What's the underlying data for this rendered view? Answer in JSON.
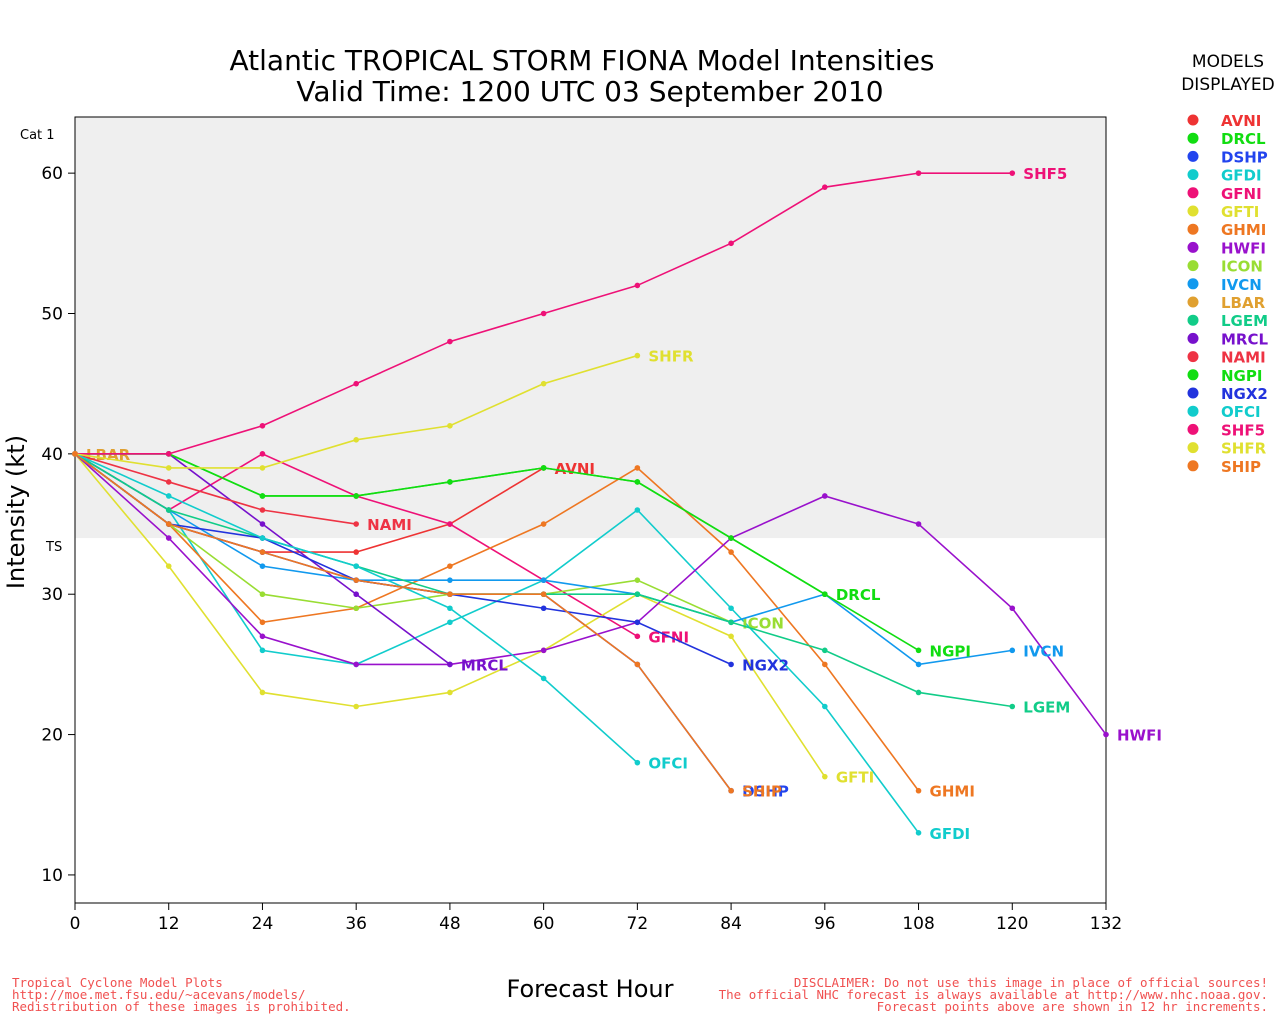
{
  "title_line1": "Atlantic TROPICAL STORM FIONA Model Intensities",
  "title_line2": "Valid Time: 1200 UTC 03 September 2010",
  "legend_title_line1": "MODELS",
  "legend_title_line2": "DISPLAYED",
  "band_labels": {
    "cat1": "Cat 1",
    "ts": "TS"
  },
  "footer_left": [
    "Tropical Cyclone Model Plots",
    "http://moe.met.fsu.edu/~acevans/models/",
    "Redistribution of these images is prohibited."
  ],
  "footer_right": [
    "DISCLAIMER: Do not use this image in place of official sources!",
    "The official NHC forecast is always available at http://www.nhc.noaa.gov.",
    "Forecast points above are shown in 12 hr increments."
  ],
  "chart_data": {
    "type": "line",
    "xlabel": "Forecast Hour",
    "ylabel": "Intensity (kt)",
    "xlim": [
      0,
      132
    ],
    "ylim": [
      8,
      64
    ],
    "xticks": [
      0,
      12,
      24,
      36,
      48,
      60,
      72,
      84,
      96,
      108,
      120,
      132
    ],
    "yticks": [
      10,
      20,
      30,
      40,
      50,
      60
    ],
    "bands": {
      "cat1_min_kt": 64,
      "ts_min_kt": 34
    },
    "grid": false,
    "legend_position": "right",
    "series": [
      {
        "name": "AVNI",
        "color": "#ee3333",
        "x": [
          0,
          12,
          24,
          36,
          48,
          60
        ],
        "y": [
          40,
          35,
          33,
          33,
          35,
          39
        ]
      },
      {
        "name": "DRCL",
        "color": "#11dd11",
        "x": [
          0,
          12,
          24,
          36,
          48,
          60,
          72,
          84,
          96
        ],
        "y": [
          40,
          40,
          37,
          37,
          38,
          39,
          38,
          34,
          30
        ]
      },
      {
        "name": "DSHP",
        "color": "#2244ee",
        "x": [
          0,
          12,
          24,
          36,
          48,
          60,
          72,
          84
        ],
        "y": [
          40,
          35,
          33,
          31,
          30,
          30,
          25,
          16
        ]
      },
      {
        "name": "GFDI",
        "color": "#11cccc",
        "x": [
          0,
          12,
          24,
          36,
          48,
          60,
          72,
          84,
          96,
          108
        ],
        "y": [
          40,
          36,
          26,
          25,
          28,
          31,
          36,
          29,
          22,
          13
        ]
      },
      {
        "name": "GFNI",
        "color": "#ee1177",
        "x": [
          0,
          12,
          24,
          36,
          48,
          60,
          72
        ],
        "y": [
          40,
          36,
          40,
          37,
          35,
          31,
          27
        ]
      },
      {
        "name": "GFTI",
        "color": "#e0e030",
        "x": [
          0,
          12,
          24,
          36,
          48,
          60,
          72,
          84,
          96
        ],
        "y": [
          40,
          32,
          23,
          22,
          23,
          26,
          30,
          27,
          17
        ]
      },
      {
        "name": "GHMI",
        "color": "#ee7722",
        "x": [
          0,
          12,
          24,
          36,
          48,
          60,
          72,
          84,
          96,
          108
        ],
        "y": [
          40,
          35,
          28,
          29,
          32,
          35,
          39,
          33,
          25,
          16
        ]
      },
      {
        "name": "HWFI",
        "color": "#9911cc",
        "x": [
          0,
          12,
          24,
          36,
          48,
          60,
          72,
          84,
          96,
          108,
          120,
          132
        ],
        "y": [
          40,
          34,
          27,
          25,
          25,
          26,
          28,
          34,
          37,
          35,
          29,
          20
        ]
      },
      {
        "name": "ICON",
        "color": "#99dd33",
        "x": [
          0,
          12,
          24,
          36,
          48,
          60,
          72,
          84
        ],
        "y": [
          40,
          35,
          30,
          29,
          30,
          30,
          31,
          28
        ]
      },
      {
        "name": "IVCN",
        "color": "#1199ee",
        "x": [
          0,
          12,
          24,
          36,
          48,
          60,
          72,
          84,
          96,
          108,
          120
        ],
        "y": [
          40,
          36,
          32,
          31,
          31,
          31,
          30,
          28,
          30,
          25,
          26
        ]
      },
      {
        "name": "LBAR",
        "color": "#e0a030",
        "x": [
          0
        ],
        "y": [
          40
        ]
      },
      {
        "name": "LGEM",
        "color": "#11cc88",
        "x": [
          0,
          12,
          24,
          36,
          48,
          60,
          72,
          84,
          96,
          108,
          120
        ],
        "y": [
          40,
          36,
          34,
          32,
          30,
          30,
          30,
          28,
          26,
          23,
          22
        ]
      },
      {
        "name": "MRCL",
        "color": "#7711cc",
        "x": [
          0,
          12,
          24,
          36,
          48
        ],
        "y": [
          40,
          40,
          35,
          30,
          25
        ]
      },
      {
        "name": "NAMI",
        "color": "#ee3344",
        "x": [
          0,
          12,
          24,
          36
        ],
        "y": [
          40,
          38,
          36,
          35
        ]
      },
      {
        "name": "NGPI",
        "color": "#11dd11",
        "x": [
          0,
          12,
          24,
          36,
          48,
          60,
          72,
          84,
          96,
          108
        ],
        "y": [
          40,
          40,
          37,
          37,
          38,
          39,
          38,
          34,
          30,
          26
        ]
      },
      {
        "name": "NGX2",
        "color": "#2233dd",
        "x": [
          0,
          12,
          24,
          36,
          48,
          60,
          72,
          84
        ],
        "y": [
          40,
          35,
          34,
          31,
          30,
          29,
          28,
          25
        ]
      },
      {
        "name": "OFCI",
        "color": "#11cccc",
        "x": [
          0,
          12,
          24,
          36,
          48,
          60,
          72
        ],
        "y": [
          40,
          37,
          34,
          32,
          29,
          24,
          18
        ]
      },
      {
        "name": "SHF5",
        "color": "#ee1177",
        "x": [
          0,
          12,
          24,
          36,
          48,
          60,
          72,
          84,
          96,
          108,
          120
        ],
        "y": [
          40,
          40,
          42,
          45,
          48,
          50,
          52,
          55,
          59,
          60,
          60
        ]
      },
      {
        "name": "SHFR",
        "color": "#e0e030",
        "x": [
          0,
          12,
          24,
          36,
          48,
          60,
          72
        ],
        "y": [
          40,
          39,
          39,
          41,
          42,
          45,
          47
        ]
      },
      {
        "name": "SHIP",
        "color": "#ee7722",
        "x": [
          0,
          12,
          24,
          36,
          48,
          60,
          72,
          84
        ],
        "y": [
          40,
          35,
          33,
          31,
          30,
          30,
          25,
          16
        ]
      }
    ]
  }
}
